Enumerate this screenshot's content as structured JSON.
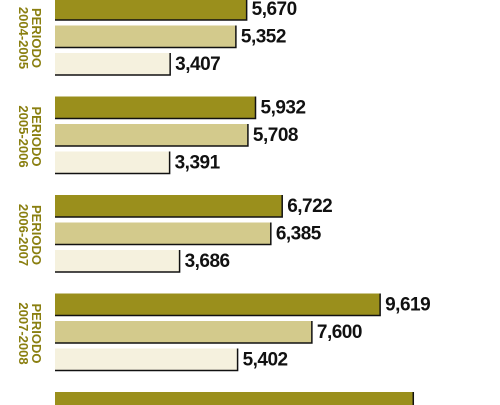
{
  "chart_data": {
    "type": "bar",
    "orientation": "horizontal",
    "categories": [
      "PERIODO 2004-2005",
      "PERIODO 2005-2006",
      "PERIODO 2006-2007",
      "PERIODO 2007-2008",
      null
    ],
    "series": [
      {
        "color": "#9a8f1c",
        "values": [
          5670,
          5932,
          6722,
          9619,
          10600
        ],
        "value_labels": [
          "5,670",
          "5,932",
          "6,722",
          "9,619",
          null
        ]
      },
      {
        "color": "#d3ca8c",
        "values": [
          5352,
          5708,
          6385,
          7600,
          null
        ],
        "value_labels": [
          "5,352",
          "5,708",
          "6,385",
          "7,600",
          null
        ]
      },
      {
        "color": "#f5f1de",
        "values": [
          3407,
          3391,
          3686,
          5402,
          null
        ],
        "value_labels": [
          "3,407",
          "3,391",
          "3,686",
          "5,402",
          null
        ]
      }
    ]
  }
}
